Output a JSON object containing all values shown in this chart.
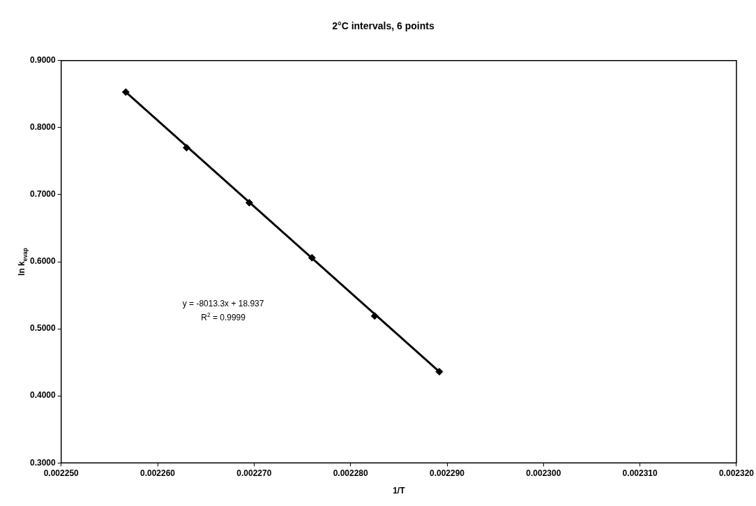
{
  "chart_data": {
    "type": "scatter",
    "title": "2°C intervals, 6 points",
    "xlabel": "1/T",
    "ylabel": "ln k$_{evap}$",
    "series": [
      {
        "color": "#000000",
        "marker": "diamond",
        "x": [
          0.0022567,
          0.002263,
          0.0022695,
          0.002276,
          0.0022825,
          0.0022892
        ],
        "values": [
          0.853,
          0.77,
          0.688,
          0.606,
          0.519,
          0.436
        ]
      },
      {
        "type": "line",
        "color": "#000000",
        "marker": "none",
        "line_style": "solid",
        "x": [
          0.0022567,
          0.0022892
        ],
        "values": [
          0.853,
          0.436
        ]
      }
    ],
    "xlim": [
      0.00225,
      0.00232
    ],
    "xticks": [
      {
        "value": 0.00225,
        "label": "0.002250"
      },
      {
        "value": 0.00226,
        "label": "0.002260"
      },
      {
        "value": 0.00227,
        "label": "0.002270"
      },
      {
        "value": 0.00228,
        "label": "0.002280"
      },
      {
        "value": 0.00229,
        "label": "0.002290"
      },
      {
        "value": 0.0023,
        "label": "0.002300"
      },
      {
        "value": 0.00231,
        "label": "0.002310"
      },
      {
        "value": 0.00232,
        "label": "0.002320"
      }
    ],
    "ylim": [
      0.3,
      0.9
    ],
    "yticks": [
      {
        "value": 0.3,
        "label": "0.3000"
      },
      {
        "value": 0.4,
        "label": "0.4000"
      },
      {
        "value": 0.5,
        "label": "0.5000"
      },
      {
        "value": 0.6,
        "label": "0.6000"
      },
      {
        "value": 0.7,
        "label": "0.7000"
      },
      {
        "value": 0.8,
        "label": "0.8000"
      },
      {
        "value": 0.9,
        "label": "0.9000"
      }
    ],
    "grid": false,
    "legend": false,
    "annotations": [
      "y = -8013.3x + 18.937",
      "R$^{2}$ = 0.9999"
    ]
  }
}
